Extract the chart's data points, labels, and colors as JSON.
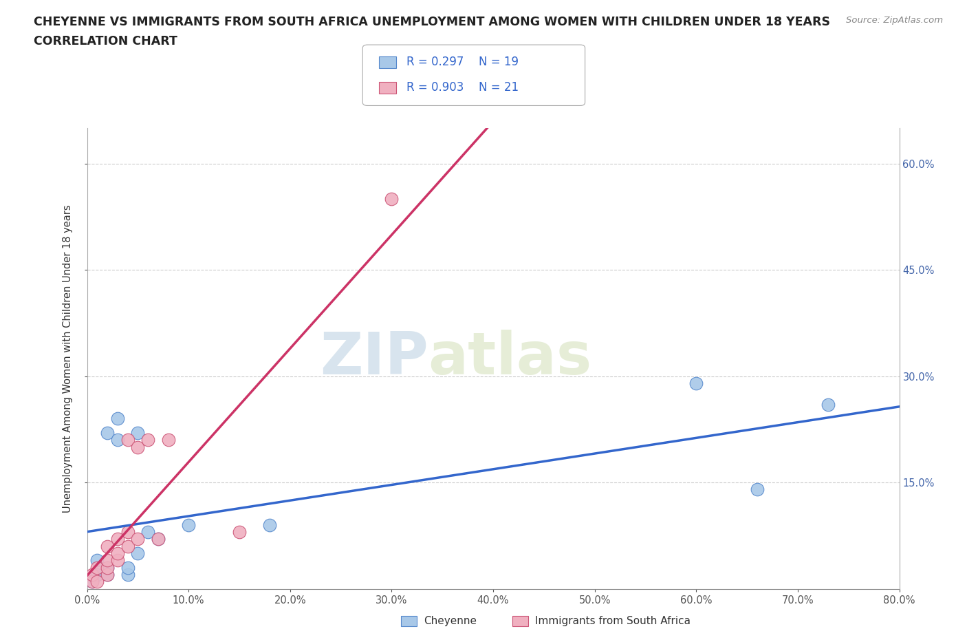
{
  "title_line1": "CHEYENNE VS IMMIGRANTS FROM SOUTH AFRICA UNEMPLOYMENT AMONG WOMEN WITH CHILDREN UNDER 18 YEARS",
  "title_line2": "CORRELATION CHART",
  "source_text": "Source: ZipAtlas.com",
  "ylabel": "Unemployment Among Women with Children Under 18 years",
  "xlim": [
    0.0,
    0.8
  ],
  "ylim": [
    0.0,
    0.65
  ],
  "xtick_labels": [
    "0.0%",
    "10.0%",
    "20.0%",
    "30.0%",
    "40.0%",
    "50.0%",
    "60.0%",
    "70.0%",
    "80.0%"
  ],
  "xtick_vals": [
    0.0,
    0.1,
    0.2,
    0.3,
    0.4,
    0.5,
    0.6,
    0.7,
    0.8
  ],
  "ytick_labels": [
    "15.0%",
    "30.0%",
    "45.0%",
    "60.0%"
  ],
  "ytick_vals": [
    0.15,
    0.3,
    0.45,
    0.6
  ],
  "grid_color": "#cccccc",
  "watermark_zip": "ZIP",
  "watermark_atlas": "atlas",
  "cheyenne_color": "#a8c8e8",
  "immigrants_color": "#f0b0c0",
  "cheyenne_edge_color": "#5588cc",
  "immigrants_edge_color": "#cc5577",
  "cheyenne_line_color": "#3366cc",
  "immigrants_line_color": "#cc3366",
  "legend_R1": "R = 0.297",
  "legend_N1": "N = 19",
  "legend_R2": "R = 0.903",
  "legend_N2": "N = 21",
  "cheyenne_x": [
    0.005,
    0.01,
    0.01,
    0.02,
    0.02,
    0.02,
    0.03,
    0.03,
    0.04,
    0.04,
    0.05,
    0.05,
    0.06,
    0.07,
    0.1,
    0.18,
    0.6,
    0.66,
    0.73
  ],
  "cheyenne_y": [
    0.01,
    0.02,
    0.04,
    0.02,
    0.03,
    0.22,
    0.21,
    0.24,
    0.02,
    0.03,
    0.05,
    0.22,
    0.08,
    0.07,
    0.09,
    0.09,
    0.29,
    0.14,
    0.26
  ],
  "immigrants_x": [
    0.005,
    0.005,
    0.01,
    0.01,
    0.02,
    0.02,
    0.02,
    0.02,
    0.03,
    0.03,
    0.03,
    0.04,
    0.04,
    0.04,
    0.05,
    0.05,
    0.06,
    0.07,
    0.08,
    0.15,
    0.3
  ],
  "immigrants_y": [
    0.01,
    0.02,
    0.01,
    0.03,
    0.02,
    0.03,
    0.04,
    0.06,
    0.04,
    0.05,
    0.07,
    0.06,
    0.08,
    0.21,
    0.07,
    0.2,
    0.21,
    0.07,
    0.21,
    0.08,
    0.55
  ]
}
